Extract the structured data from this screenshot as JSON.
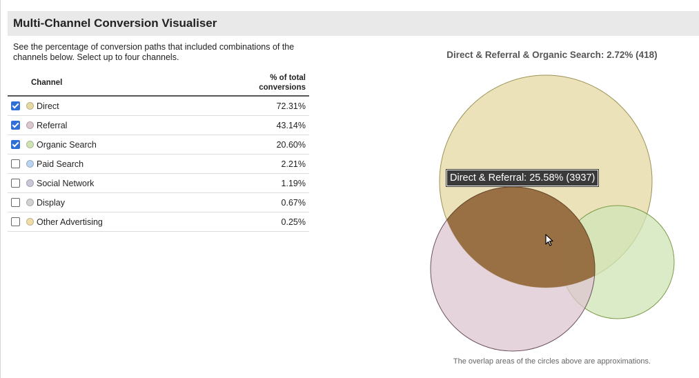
{
  "header": {
    "title": "Multi-Channel Conversion Visualiser"
  },
  "description": "See the percentage of conversion paths that included combinations of the channels below. Select up to four channels.",
  "table": {
    "col_channel": "Channel",
    "col_pct_line1": "% of total",
    "col_pct_line2": "conversions",
    "rows": [
      {
        "name": "Direct",
        "value": "72.31%",
        "checked": true,
        "color": "#e6d8a3"
      },
      {
        "name": "Referral",
        "value": "43.14%",
        "checked": true,
        "color": "#dcc6cf"
      },
      {
        "name": "Organic Search",
        "value": "20.60%",
        "checked": true,
        "color": "#cfe4b6"
      },
      {
        "name": "Paid Search",
        "value": "2.21%",
        "checked": false,
        "color": "#b9d3f0"
      },
      {
        "name": "Social Network",
        "value": "1.19%",
        "checked": false,
        "color": "#c8c8d8"
      },
      {
        "name": "Display",
        "value": "0.67%",
        "checked": false,
        "color": "#d2d2d2"
      },
      {
        "name": "Other Advertising",
        "value": "0.25%",
        "checked": false,
        "color": "#efdca8"
      }
    ]
  },
  "venn": {
    "title": "Direct & Referral & Organic Search: 2.72% (418)",
    "tooltip": "Direct & Referral: 25.58% (3937)",
    "footnote": "The overlap areas of the circles above are approximations.",
    "direct_color": "#e6d8a3",
    "referral_color": "#dcc6cf",
    "organic_color": "#cfe4b6",
    "highlight_color": "#946a3c"
  }
}
